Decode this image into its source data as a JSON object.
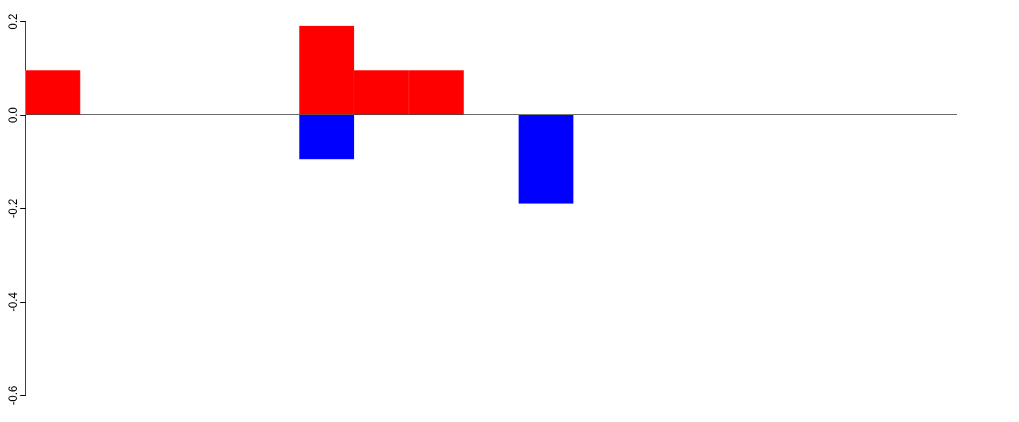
{
  "chart_data": {
    "type": "bar",
    "categories": [
      null,
      null,
      null,
      null,
      null,
      null,
      null,
      null,
      null,
      null,
      null,
      null,
      null,
      null,
      null,
      null,
      null
    ],
    "series": [
      {
        "color": "#ff0000",
        "values": [
          0.095,
          null,
          null,
          null,
          null,
          0.19,
          0.095,
          0.095,
          null,
          null,
          null,
          null,
          null,
          null,
          null,
          null,
          null
        ]
      },
      {
        "color": "#0000ff",
        "values": [
          null,
          null,
          null,
          null,
          null,
          -0.095,
          null,
          null,
          null,
          -0.19,
          null,
          null,
          null,
          null,
          null,
          null,
          null
        ]
      }
    ],
    "ylim": [
      -0.6,
      0.2
    ],
    "yticks": [
      -0.6,
      -0.4,
      -0.2,
      {
        "value": 0,
        "label": "0.0"
      },
      0.2
    ],
    "ref_lines": [
      {
        "axis": "y",
        "value": 0,
        "color": "#555555"
      }
    ],
    "tick_labels": "y",
    "grid": false,
    "legend": false
  }
}
